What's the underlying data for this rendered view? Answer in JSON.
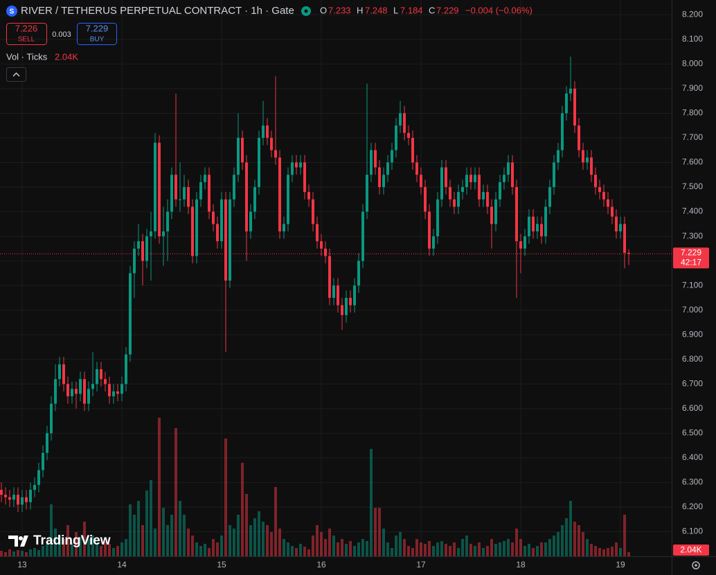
{
  "chart_data": {
    "type": "candlestick",
    "title": "RIVER / TETHERUS PERPETUAL CONTRACT · 1h · Gate",
    "ohlc_letters": [
      "O",
      "H",
      "L",
      "C"
    ],
    "change": "−0.004 (−0.06%)",
    "sell": {
      "price": 7.226,
      "label": "SELL"
    },
    "spread": 0.003,
    "buy": {
      "price": 7.229,
      "label": "BUY"
    },
    "countdown": "42:17",
    "watermark": "TradingView",
    "up_color": "#089981",
    "down_color": "#f23645",
    "grid": true,
    "ylim": [
      6.0,
      8.26
    ],
    "yticks": [
      {
        "value": 6.1,
        "label": "6.100"
      },
      {
        "value": 6.2,
        "label": "6.200"
      },
      {
        "value": 6.3,
        "label": "6.300"
      },
      {
        "value": 6.4,
        "label": "6.400"
      },
      {
        "value": 6.5,
        "label": "6.500"
      },
      {
        "value": 6.6,
        "label": "6.600"
      },
      {
        "value": 6.7,
        "label": "6.700"
      },
      {
        "value": 6.8,
        "label": "6.800"
      },
      {
        "value": 6.9,
        "label": "6.900"
      },
      {
        "value": 7.0,
        "label": "7.000"
      },
      {
        "value": 7.1,
        "label": "7.100"
      },
      {
        "value": 7.2,
        "label": "7.200"
      },
      {
        "value": 7.3,
        "label": "7.300"
      },
      {
        "value": 7.4,
        "label": "7.400"
      },
      {
        "value": 7.5,
        "label": "7.500"
      },
      {
        "value": 7.6,
        "label": "7.600"
      },
      {
        "value": 7.7,
        "label": "7.700"
      },
      {
        "value": 7.8,
        "label": "7.800"
      },
      {
        "value": 7.9,
        "label": "7.900"
      },
      {
        "value": 8.0,
        "label": "8.000"
      },
      {
        "value": 8.1,
        "label": "8.100"
      },
      {
        "value": 8.2,
        "label": "8.200"
      }
    ],
    "categories": [
      null,
      null,
      null,
      null,
      null,
      "13",
      null,
      null,
      null,
      null,
      null,
      null,
      null,
      null,
      null,
      null,
      null,
      null,
      null,
      null,
      null,
      null,
      null,
      null,
      null,
      null,
      null,
      null,
      null,
      "14",
      null,
      null,
      null,
      null,
      null,
      null,
      null,
      null,
      null,
      null,
      null,
      null,
      null,
      null,
      null,
      null,
      null,
      null,
      null,
      null,
      null,
      null,
      null,
      "15",
      null,
      null,
      null,
      null,
      null,
      null,
      null,
      null,
      null,
      null,
      null,
      null,
      null,
      null,
      null,
      null,
      null,
      null,
      null,
      null,
      null,
      null,
      null,
      "16",
      null,
      null,
      null,
      null,
      null,
      null,
      null,
      null,
      null,
      null,
      null,
      null,
      null,
      null,
      null,
      null,
      null,
      null,
      null,
      null,
      null,
      null,
      null,
      "17",
      null,
      null,
      null,
      null,
      null,
      null,
      null,
      null,
      null,
      null,
      null,
      null,
      null,
      null,
      null,
      null,
      null,
      null,
      null,
      null,
      null,
      null,
      null,
      "18",
      null,
      null,
      null,
      null,
      null,
      null,
      null,
      null,
      null,
      null,
      null,
      null,
      null,
      null,
      null,
      null,
      null,
      null,
      null,
      null,
      null,
      null,
      null,
      "19",
      null,
      null
    ],
    "open": [
      6.27,
      6.25,
      6.24,
      6.23,
      6.25,
      6.21,
      6.24,
      6.22,
      6.27,
      6.29,
      6.35,
      6.42,
      6.5,
      6.62,
      6.72,
      6.78,
      6.7,
      6.65,
      6.68,
      6.66,
      6.72,
      6.62,
      6.68,
      6.7,
      6.76,
      6.72,
      6.7,
      6.65,
      6.67,
      6.66,
      6.7,
      6.82,
      7.15,
      7.25,
      7.28,
      7.2,
      7.3,
      7.32,
      7.68,
      7.3,
      7.32,
      7.4,
      7.55,
      7.45,
      7.45,
      7.5,
      7.42,
      7.22,
      7.45,
      7.52,
      7.55,
      7.4,
      7.35,
      7.28,
      7.45,
      7.12,
      7.45,
      7.55,
      7.7,
      7.6,
      7.32,
      7.4,
      7.5,
      7.7,
      7.75,
      7.7,
      7.65,
      7.62,
      7.32,
      7.35,
      7.55,
      7.6,
      7.58,
      7.6,
      7.48,
      7.45,
      7.35,
      7.28,
      7.25,
      7.22,
      7.05,
      7.1,
      7.02,
      6.98,
      7.05,
      7.02,
      7.1,
      7.2,
      7.4,
      7.55,
      7.65,
      7.58,
      7.5,
      7.55,
      7.6,
      7.65,
      7.75,
      7.8,
      7.72,
      7.7,
      7.6,
      7.55,
      7.5,
      7.4,
      7.25,
      7.3,
      7.45,
      7.58,
      7.5,
      7.45,
      7.42,
      7.48,
      7.5,
      7.55,
      7.52,
      7.55,
      7.45,
      7.48,
      7.42,
      7.35,
      7.45,
      7.52,
      7.55,
      7.6,
      7.5,
      7.28,
      7.25,
      7.3,
      7.38,
      7.32,
      7.35,
      7.3,
      7.42,
      7.5,
      7.6,
      7.65,
      7.8,
      7.88,
      7.9,
      7.75,
      7.65,
      7.6,
      7.62,
      7.55,
      7.5,
      7.48,
      7.45,
      7.42,
      7.38,
      7.32,
      7.35,
      7.233
    ],
    "high": [
      6.3,
      6.28,
      6.27,
      6.28,
      6.28,
      6.27,
      6.27,
      6.3,
      6.32,
      6.38,
      6.45,
      6.53,
      6.65,
      6.78,
      6.81,
      6.81,
      6.73,
      6.71,
      6.71,
      6.75,
      6.75,
      6.71,
      6.83,
      6.79,
      6.79,
      6.75,
      6.73,
      6.7,
      6.7,
      6.73,
      6.85,
      7.18,
      7.28,
      7.35,
      7.31,
      7.33,
      7.4,
      7.72,
      7.71,
      7.42,
      7.45,
      7.58,
      7.88,
      7.6,
      7.55,
      7.53,
      7.45,
      7.48,
      7.55,
      7.58,
      7.58,
      7.43,
      7.38,
      7.48,
      7.48,
      7.48,
      7.58,
      7.8,
      7.73,
      7.63,
      7.43,
      7.53,
      7.73,
      7.85,
      7.78,
      7.73,
      7.95,
      7.65,
      7.38,
      7.58,
      7.63,
      7.63,
      7.63,
      7.63,
      7.51,
      7.48,
      7.38,
      7.31,
      7.28,
      7.25,
      7.13,
      7.13,
      7.05,
      7.08,
      7.08,
      7.13,
      7.23,
      7.43,
      7.92,
      7.68,
      7.68,
      7.61,
      7.58,
      7.63,
      7.68,
      7.78,
      7.85,
      7.83,
      7.75,
      7.73,
      7.63,
      7.58,
      7.53,
      7.43,
      7.33,
      7.48,
      7.61,
      7.61,
      7.53,
      7.48,
      7.51,
      7.53,
      7.58,
      7.58,
      7.58,
      7.58,
      7.51,
      7.51,
      7.45,
      7.48,
      7.55,
      7.58,
      7.63,
      7.63,
      7.53,
      7.31,
      7.33,
      7.41,
      7.41,
      7.38,
      7.38,
      7.45,
      7.53,
      7.63,
      7.68,
      7.83,
      7.91,
      8.03,
      7.93,
      7.78,
      7.68,
      7.65,
      7.65,
      7.58,
      7.53,
      7.51,
      7.48,
      7.45,
      7.41,
      7.38,
      7.38,
      7.248
    ],
    "low": [
      6.22,
      6.21,
      6.2,
      6.2,
      6.18,
      6.18,
      6.19,
      6.19,
      6.24,
      6.26,
      6.32,
      6.39,
      6.47,
      6.59,
      6.69,
      6.67,
      6.62,
      6.62,
      6.6,
      6.63,
      6.59,
      6.59,
      6.65,
      6.67,
      6.69,
      6.67,
      6.62,
      6.62,
      6.63,
      6.63,
      6.67,
      6.79,
      7.05,
      7.22,
      7.1,
      7.17,
      7.12,
      7.29,
      7.27,
      7.18,
      7.2,
      7.37,
      7.42,
      7.4,
      7.42,
      7.39,
      7.19,
      7.19,
      7.42,
      7.49,
      7.37,
      7.32,
      7.25,
      7.25,
      6.83,
      7.09,
      7.42,
      7.52,
      7.57,
      7.2,
      7.29,
      7.37,
      7.47,
      7.67,
      7.67,
      7.62,
      7.59,
      7.29,
      7.29,
      7.32,
      7.52,
      7.55,
      7.55,
      7.45,
      7.42,
      7.32,
      7.25,
      7.22,
      7.19,
      7.02,
      7.02,
      6.99,
      6.92,
      6.95,
      6.99,
      6.99,
      7.07,
      7.17,
      7.37,
      7.52,
      7.55,
      7.47,
      7.47,
      7.52,
      7.57,
      7.62,
      7.72,
      7.69,
      7.67,
      7.57,
      7.52,
      7.47,
      7.37,
      7.22,
      7.22,
      7.27,
      7.42,
      7.47,
      7.42,
      7.39,
      7.39,
      7.45,
      7.47,
      7.49,
      7.49,
      7.42,
      7.42,
      7.39,
      7.25,
      7.32,
      7.42,
      7.49,
      7.52,
      7.47,
      7.05,
      7.15,
      7.22,
      7.27,
      7.29,
      7.29,
      7.27,
      7.27,
      7.39,
      7.47,
      7.57,
      7.62,
      7.77,
      7.85,
      7.72,
      7.62,
      7.57,
      7.57,
      7.52,
      7.47,
      7.45,
      7.42,
      7.39,
      7.35,
      7.29,
      7.29,
      7.17,
      7.184
    ],
    "close": [
      6.25,
      6.24,
      6.23,
      6.25,
      6.21,
      6.24,
      6.22,
      6.27,
      6.29,
      6.35,
      6.42,
      6.5,
      6.62,
      6.72,
      6.78,
      6.7,
      6.65,
      6.68,
      6.66,
      6.72,
      6.62,
      6.68,
      6.7,
      6.76,
      6.72,
      6.7,
      6.65,
      6.67,
      6.66,
      6.7,
      6.82,
      7.15,
      7.25,
      7.28,
      7.2,
      7.3,
      7.32,
      7.68,
      7.3,
      7.32,
      7.4,
      7.55,
      7.45,
      7.45,
      7.5,
      7.42,
      7.22,
      7.45,
      7.52,
      7.55,
      7.4,
      7.35,
      7.28,
      7.45,
      7.12,
      7.45,
      7.55,
      7.7,
      7.6,
      7.32,
      7.4,
      7.5,
      7.7,
      7.75,
      7.7,
      7.65,
      7.62,
      7.32,
      7.35,
      7.55,
      7.6,
      7.58,
      7.6,
      7.48,
      7.45,
      7.35,
      7.28,
      7.25,
      7.22,
      7.05,
      7.1,
      7.02,
      6.98,
      7.05,
      7.02,
      7.1,
      7.2,
      7.4,
      7.55,
      7.65,
      7.58,
      7.5,
      7.55,
      7.6,
      7.65,
      7.75,
      7.8,
      7.72,
      7.7,
      7.6,
      7.55,
      7.5,
      7.4,
      7.25,
      7.3,
      7.45,
      7.58,
      7.5,
      7.45,
      7.42,
      7.48,
      7.5,
      7.55,
      7.52,
      7.55,
      7.45,
      7.48,
      7.42,
      7.35,
      7.45,
      7.52,
      7.55,
      7.6,
      7.5,
      7.28,
      7.25,
      7.3,
      7.38,
      7.32,
      7.35,
      7.3,
      7.42,
      7.5,
      7.6,
      7.65,
      7.8,
      7.88,
      7.9,
      7.75,
      7.65,
      7.6,
      7.62,
      7.55,
      7.5,
      7.48,
      7.45,
      7.42,
      7.38,
      7.32,
      7.35,
      7.233,
      7.229
    ],
    "volume": {
      "name": "Vol · Ticks",
      "last_label": "2.04K",
      "values": [
        2720,
        2040,
        3400,
        2380,
        3060,
        2720,
        2040,
        3400,
        4080,
        3060,
        5100,
        6120,
        25500,
        13600,
        10200,
        8500,
        15300,
        6800,
        11900,
        9520,
        17000,
        8500,
        10200,
        6800,
        5100,
        7480,
        6120,
        4080,
        5100,
        6800,
        8500,
        25500,
        20400,
        27200,
        15300,
        32300,
        37400,
        13600,
        68000,
        23800,
        15300,
        20400,
        62900,
        27200,
        20400,
        13600,
        10200,
        6800,
        5100,
        6120,
        4080,
        8500,
        6800,
        10200,
        57800,
        15300,
        13600,
        20400,
        45900,
        30600,
        15300,
        18700,
        22100,
        17000,
        15300,
        11900,
        34000,
        13600,
        8500,
        6800,
        5100,
        4080,
        6120,
        4760,
        3400,
        10200,
        15300,
        11900,
        8500,
        13600,
        10200,
        6800,
        8500,
        6120,
        7480,
        5100,
        6800,
        8500,
        7480,
        52700,
        23800,
        23800,
        13600,
        6800,
        4080,
        10200,
        11900,
        8500,
        5100,
        4080,
        8500,
        6800,
        6120,
        7480,
        5100,
        6800,
        7480,
        6120,
        5100,
        6800,
        4080,
        8500,
        10200,
        6120,
        5100,
        6800,
        4080,
        5100,
        8500,
        6120,
        6800,
        7480,
        8500,
        6800,
        13600,
        8500,
        5100,
        6120,
        4080,
        5100,
        6800,
        6800,
        8500,
        10200,
        11900,
        15300,
        18700,
        27200,
        17000,
        15300,
        11900,
        8500,
        6120,
        5100,
        4080,
        3400,
        4080,
        4760,
        6800,
        4080,
        20400,
        2040
      ]
    }
  }
}
